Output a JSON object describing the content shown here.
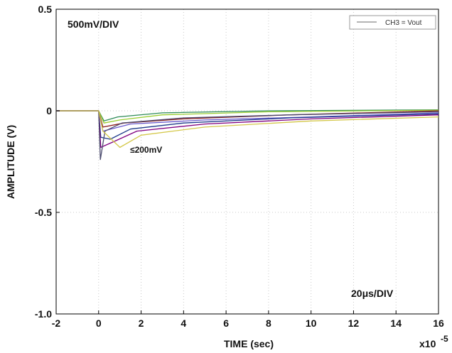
{
  "chart_data": {
    "type": "line",
    "xlabel": "TIME (sec)",
    "ylabel": "AMPLITUDE (V)",
    "x_multiplier_label": "x10",
    "x_multiplier_exp": "-5",
    "xlim": [
      -2,
      16
    ],
    "ylim": [
      -1.0,
      0.5
    ],
    "x_ticks": [
      -2,
      0,
      2,
      4,
      6,
      8,
      10,
      12,
      14,
      16
    ],
    "x_tick_labels": [
      "-2",
      "0",
      "2",
      "4",
      "6",
      "8",
      "10",
      "12",
      "14",
      "16"
    ],
    "y_ticks": [
      0.5,
      0,
      -0.5,
      -1.0
    ],
    "y_tick_labels": [
      "0.5",
      "0",
      "-0.5",
      "-1.0"
    ],
    "grid": true,
    "legend": {
      "position": "top-right",
      "entries": [
        "CH3 = Vout"
      ],
      "line_color": "#888888"
    },
    "annotations": {
      "vertical_scale": "500mV/DIV",
      "horizontal_scale": "20μs/DIV",
      "step_label": "≤200mV"
    },
    "series": [
      {
        "color": "#2e8b57",
        "values": [
          [
            -2,
            0
          ],
          [
            0,
            0
          ],
          [
            0.25,
            -0.05
          ],
          [
            0.9,
            -0.03
          ],
          [
            3,
            -0.01
          ],
          [
            8,
            0
          ],
          [
            16,
            0.005
          ]
        ]
      },
      {
        "color": "#9acd32",
        "values": [
          [
            -2,
            0
          ],
          [
            0,
            0
          ],
          [
            0.25,
            -0.06
          ],
          [
            1,
            -0.045
          ],
          [
            3,
            -0.02
          ],
          [
            8,
            -0.005
          ],
          [
            16,
            0.003
          ]
        ]
      },
      {
        "color": "#8b1a1a",
        "values": [
          [
            -2,
            0
          ],
          [
            0,
            0
          ],
          [
            0.2,
            -0.08
          ],
          [
            1.2,
            -0.06
          ],
          [
            4,
            -0.04
          ],
          [
            9,
            -0.02
          ],
          [
            16,
            0
          ]
        ]
      },
      {
        "color": "#6a5acd",
        "values": [
          [
            -2,
            0
          ],
          [
            0,
            0
          ],
          [
            0.2,
            -0.1
          ],
          [
            1.5,
            -0.065
          ],
          [
            5,
            -0.045
          ],
          [
            10,
            -0.03
          ],
          [
            16,
            -0.01
          ]
        ]
      },
      {
        "color": "#1e3a8a",
        "values": [
          [
            -2,
            0
          ],
          [
            0,
            0
          ],
          [
            0.1,
            -0.13
          ],
          [
            0.55,
            -0.14
          ],
          [
            1.5,
            -0.09
          ],
          [
            4,
            -0.06
          ],
          [
            9,
            -0.035
          ],
          [
            16,
            -0.015
          ]
        ]
      },
      {
        "color": "#800080",
        "values": [
          [
            -2,
            0
          ],
          [
            0,
            0
          ],
          [
            0.1,
            -0.18
          ],
          [
            0.75,
            -0.15
          ],
          [
            1.8,
            -0.1
          ],
          [
            5,
            -0.065
          ],
          [
            10,
            -0.04
          ],
          [
            16,
            -0.02
          ]
        ]
      },
      {
        "color": "#4b4b6e",
        "values": [
          [
            -2,
            0
          ],
          [
            0,
            0
          ],
          [
            0.08,
            -0.24
          ],
          [
            0.3,
            -0.1
          ],
          [
            1.1,
            -0.06
          ],
          [
            4,
            -0.035
          ],
          [
            9,
            -0.02
          ],
          [
            16,
            -0.005
          ]
        ]
      },
      {
        "color": "#d4c84a",
        "values": [
          [
            -2,
            0
          ],
          [
            0,
            0
          ],
          [
            0.2,
            -0.1
          ],
          [
            1.0,
            -0.18
          ],
          [
            2,
            -0.12
          ],
          [
            5,
            -0.08
          ],
          [
            10,
            -0.05
          ],
          [
            16,
            -0.03
          ]
        ]
      }
    ]
  }
}
